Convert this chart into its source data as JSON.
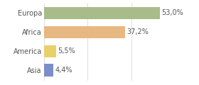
{
  "categories": [
    "Europa",
    "Africa",
    "America",
    "Asia"
  ],
  "values": [
    53.0,
    37.2,
    5.5,
    4.4
  ],
  "labels": [
    "53,0%",
    "37,2%",
    "5,5%",
    "4,4%"
  ],
  "bar_colors": [
    "#a8bc8a",
    "#e8b882",
    "#e8d06a",
    "#7b8ec8"
  ],
  "background_color": "#ffffff",
  "xlim": [
    0,
    60
  ],
  "bar_height": 0.65,
  "label_fontsize": 7.0,
  "tick_fontsize": 7.0
}
